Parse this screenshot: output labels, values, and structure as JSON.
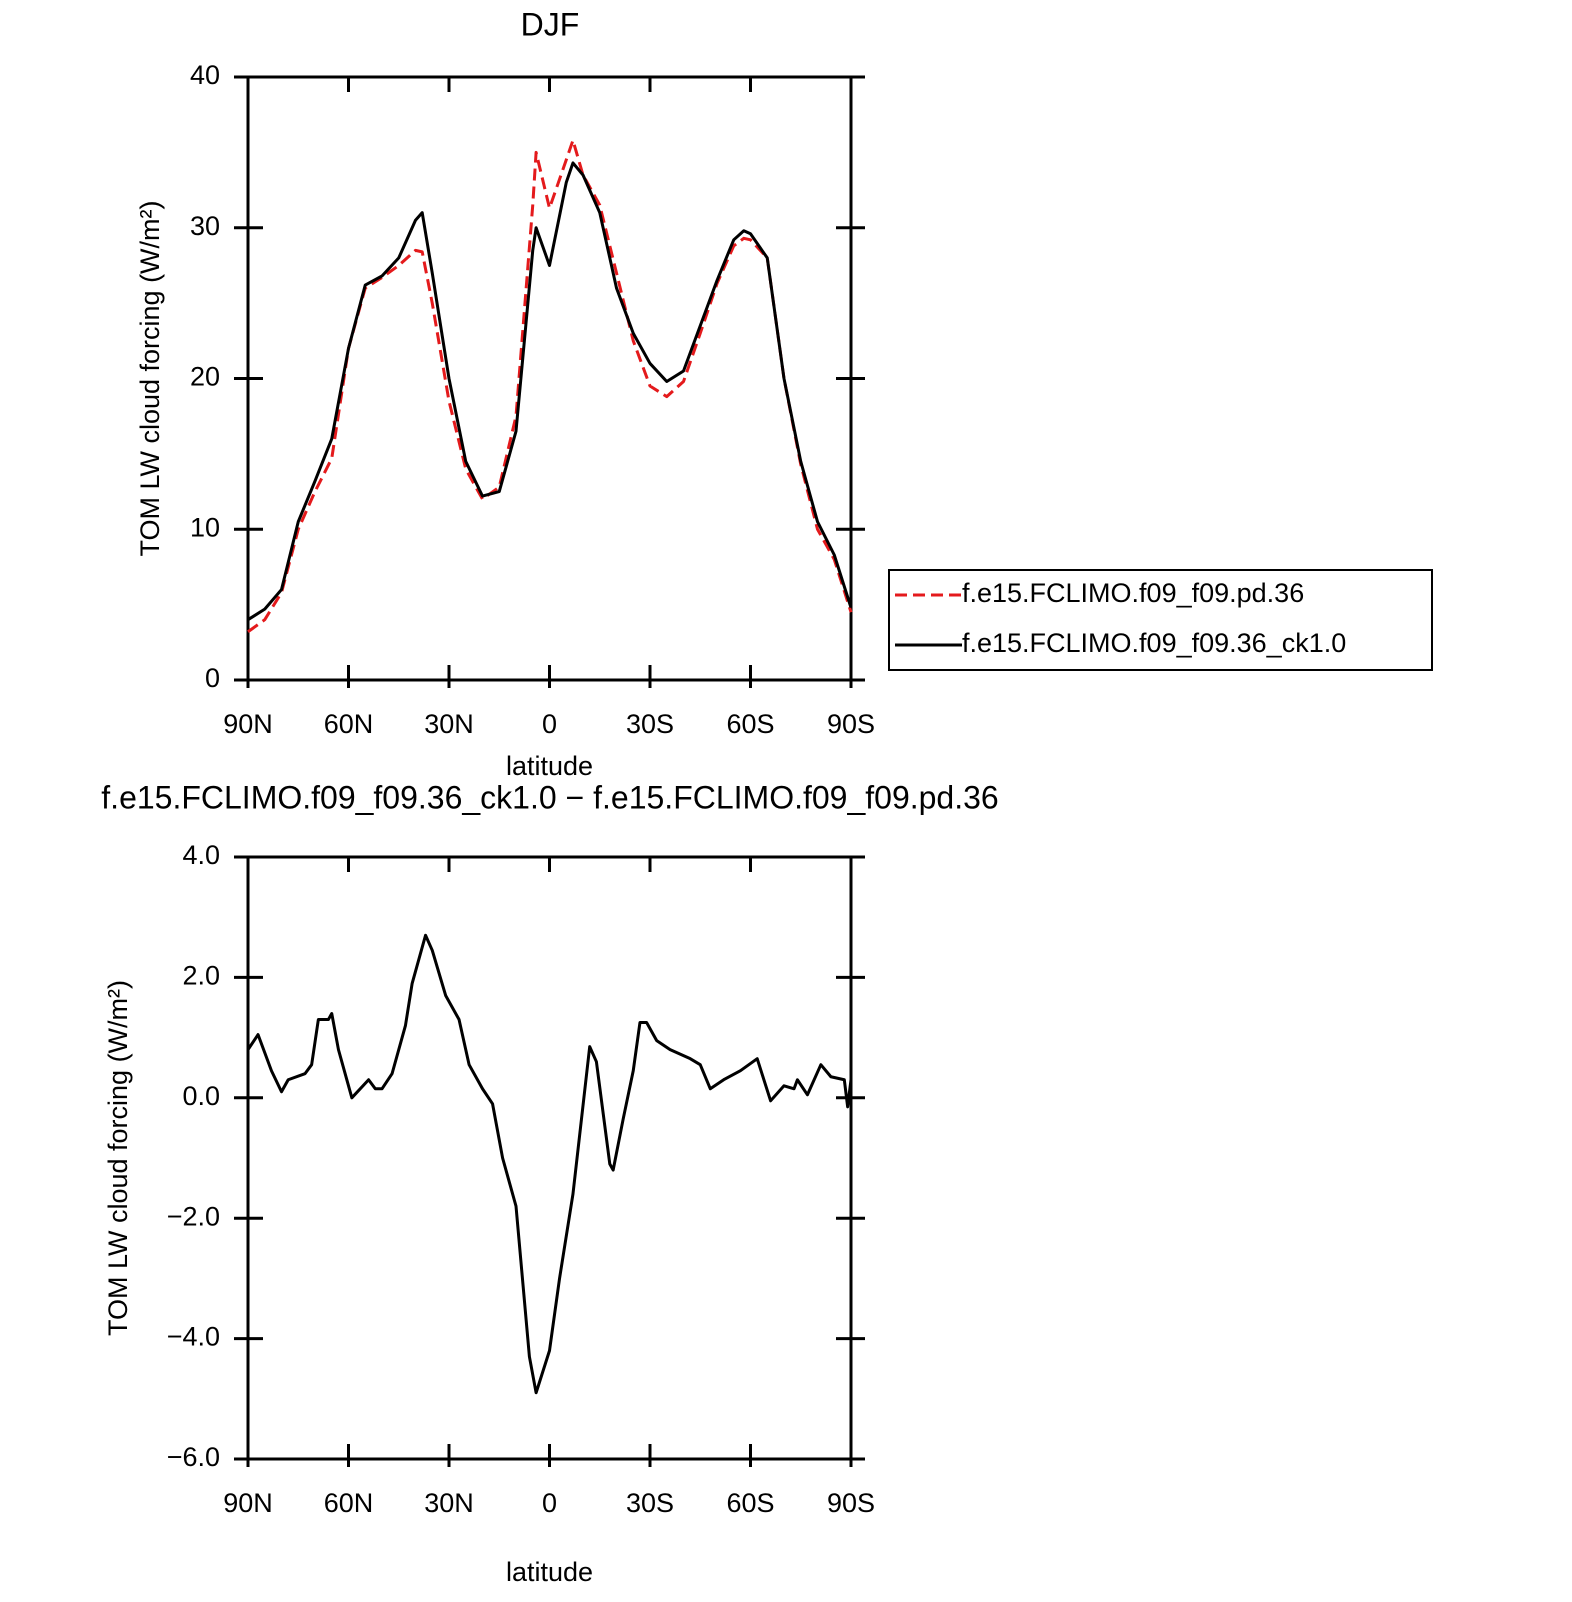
{
  "chart_data": [
    {
      "type": "line",
      "title": "DJF",
      "xlabel": "latitude",
      "ylabel": "TOM LW cloud forcing (W/m²)",
      "x": [
        90,
        85,
        80,
        75,
        70,
        65,
        60,
        55,
        50,
        45,
        40,
        38,
        35,
        30,
        25,
        20,
        15,
        10,
        5,
        4,
        0,
        -5,
        -7,
        -10,
        -15,
        -20,
        -25,
        -30,
        -35,
        -40,
        -45,
        -50,
        -55,
        -58,
        -60,
        -65,
        -70,
        -75,
        -80,
        -85,
        -90
      ],
      "series": [
        {
          "name": "f.e15.FCLIMO.f09_f09.pd.36",
          "color": "#e41a1c",
          "line_style": "dashed",
          "values": [
            3.2,
            4,
            5.8,
            10,
            12.5,
            14.7,
            22,
            26,
            26.7,
            27.5,
            28.5,
            28.4,
            25,
            18.5,
            14,
            12,
            12.8,
            17.5,
            31.5,
            35,
            31.3,
            34.5,
            35.8,
            33.5,
            31.5,
            27,
            22.5,
            19.5,
            18.8,
            19.8,
            23,
            26.3,
            28.8,
            29.3,
            29.2,
            28,
            20,
            14.3,
            10,
            8,
            4.5
          ]
        },
        {
          "name": "f.e15.FCLIMO.f09_f09.36_ck1.0",
          "color": "#000000",
          "line_style": "solid",
          "values": [
            4.0,
            4.7,
            6.0,
            10.5,
            13.2,
            16,
            22,
            26.2,
            26.8,
            28,
            30.5,
            31,
            27,
            20,
            14.5,
            12.2,
            12.5,
            16.5,
            28.5,
            30,
            27.5,
            33,
            34.3,
            33.5,
            31,
            26,
            23,
            21,
            19.8,
            20.5,
            23.5,
            26.5,
            29.2,
            29.8,
            29.6,
            28,
            20,
            14.5,
            10.5,
            8.3,
            4.8
          ]
        }
      ],
      "xlim": [
        90,
        -90
      ],
      "xticks": [
        {
          "value": 90,
          "label": "90N"
        },
        {
          "value": 60,
          "label": "60N"
        },
        {
          "value": 30,
          "label": "30N"
        },
        0,
        {
          "value": -30,
          "label": "30S"
        },
        {
          "value": -60,
          "label": "60S"
        },
        {
          "value": -90,
          "label": "90S"
        }
      ],
      "ylim": [
        0,
        40
      ],
      "yticks": [
        0,
        10,
        20,
        30,
        40
      ],
      "grid": false,
      "legend": "right"
    },
    {
      "type": "line",
      "title": "f.e15.FCLIMO.f09_f09.36_ck1.0 − f.e15.FCLIMO.f09_f09.pd.36",
      "xlabel": "latitude",
      "ylabel": "TOM LW cloud forcing (W/m²)",
      "x": [
        90,
        87,
        83,
        80,
        78,
        73,
        71,
        69,
        66,
        65,
        63,
        59,
        54,
        52,
        50,
        47,
        43,
        41,
        37,
        35,
        31,
        27,
        24,
        20,
        17,
        14,
        10,
        6,
        4,
        0,
        -3,
        -7,
        -12,
        -14,
        -18,
        -19,
        -22,
        -25,
        -27,
        -29,
        -32,
        -36,
        -42,
        -45,
        -48,
        -52,
        -57,
        -62,
        -66,
        -70,
        -73,
        -74,
        -77,
        -81,
        -84,
        -88,
        -89,
        -90
      ],
      "values": [
        0.8,
        1.05,
        0.45,
        0.1,
        0.3,
        0.4,
        0.55,
        1.3,
        1.3,
        1.4,
        0.8,
        0.0,
        0.3,
        0.15,
        0.15,
        0.4,
        1.2,
        1.9,
        2.7,
        2.45,
        1.7,
        1.3,
        0.55,
        0.15,
        -0.1,
        -1.0,
        -1.8,
        -4.3,
        -4.9,
        -4.2,
        -3.0,
        -1.6,
        0.85,
        0.6,
        -1.1,
        -1.2,
        -0.35,
        0.45,
        1.25,
        1.25,
        0.95,
        0.8,
        0.65,
        0.55,
        0.15,
        0.3,
        0.45,
        0.65,
        -0.05,
        0.2,
        0.15,
        0.3,
        0.05,
        0.55,
        0.35,
        0.3,
        -0.15,
        0.3
      ],
      "color": "#000000",
      "line_style": "solid",
      "xlim": [
        90,
        -90
      ],
      "xticks": [
        {
          "value": 90,
          "label": "90N"
        },
        {
          "value": 60,
          "label": "60N"
        },
        {
          "value": 30,
          "label": "30N"
        },
        0,
        {
          "value": -30,
          "label": "30S"
        },
        {
          "value": -60,
          "label": "60S"
        },
        {
          "value": -90,
          "label": "90S"
        }
      ],
      "ylim": [
        -6,
        4
      ],
      "yticks": [
        {
          "value": -6,
          "label": "−6.0"
        },
        {
          "value": -4,
          "label": "−4.0"
        },
        {
          "value": -2,
          "label": "−2.0"
        },
        {
          "value": 0,
          "label": "0.0"
        },
        {
          "value": 2,
          "label": "2.0"
        },
        {
          "value": 4,
          "label": "4.0"
        }
      ],
      "grid": false
    }
  ]
}
